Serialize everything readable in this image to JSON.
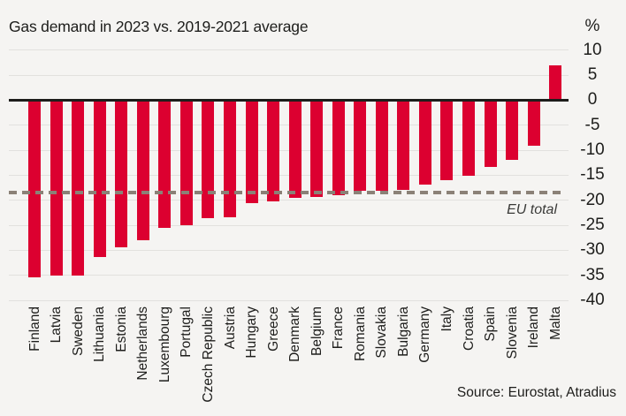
{
  "header": {
    "title": "Gas demand in 2023 vs. 2019-2021 average",
    "unit_label": "%"
  },
  "chart_data": {
    "type": "bar",
    "title": "Gas demand in 2023 vs. 2019-2021 average",
    "unit": "%",
    "categories": [
      "Finland",
      "Latvia",
      "Sweden",
      "Lithuania",
      "Estonia",
      "Netherlands",
      "Luxembourg",
      "Portugal",
      "Czech Republic",
      "Austria",
      "Hungary",
      "Greece",
      "Denmark",
      "Belgium",
      "France",
      "Romania",
      "Slovakia",
      "Bulgaria",
      "Germany",
      "Italy",
      "Croatia",
      "Spain",
      "Slovenia",
      "Ireland",
      "Malta"
    ],
    "values": [
      -35.5,
      -35.1,
      -35.0,
      -31.3,
      -29.5,
      -28.1,
      -25.6,
      -25.1,
      -23.6,
      -23.4,
      -20.6,
      -20.3,
      -19.6,
      -19.4,
      -19.0,
      -18.2,
      -18.1,
      -18.0,
      -16.9,
      -16.1,
      -15.1,
      -13.4,
      -12.0,
      -9.2,
      7.0
    ],
    "ylim": [
      -40,
      10
    ],
    "yticks": [
      10,
      5,
      0,
      -5,
      -10,
      -15,
      -20,
      -25,
      -30,
      -35,
      -40
    ],
    "grid": true,
    "bar_color": "#dc0030",
    "background_color": "#f5f4f2",
    "gridline_color": "#e2e1de",
    "zero_line_color": "#1d1d1b",
    "reference_line": {
      "label": "EU total",
      "value": -18.4,
      "color": "#8b8177",
      "style": "dashed"
    },
    "legend_position": "none",
    "xlabel": "",
    "ylabel": "%"
  },
  "footer": {
    "source": "Source: Eurostat, Atradius"
  }
}
